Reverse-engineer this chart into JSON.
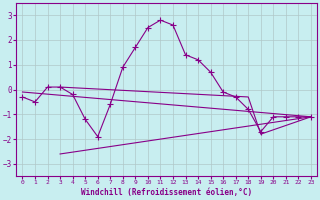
{
  "xlabel": "Windchill (Refroidissement éolien,°C)",
  "background_color": "#c8eef0",
  "grid_color": "#b0c8c8",
  "line_color": "#880088",
  "xlim": [
    -0.5,
    23.5
  ],
  "ylim": [
    -3.5,
    3.5
  ],
  "xticks": [
    0,
    1,
    2,
    3,
    4,
    5,
    6,
    7,
    8,
    9,
    10,
    11,
    12,
    13,
    14,
    15,
    16,
    17,
    18,
    19,
    20,
    21,
    22,
    23
  ],
  "yticks": [
    -3,
    -2,
    -1,
    0,
    1,
    2,
    3
  ],
  "line1_x": [
    0,
    1,
    2,
    3,
    4,
    5,
    6,
    7,
    8,
    9,
    10,
    11,
    12,
    13,
    14,
    15,
    16,
    17,
    18,
    19,
    20,
    21,
    22,
    23
  ],
  "line1_y": [
    -0.3,
    -0.5,
    0.1,
    0.1,
    -0.2,
    -1.2,
    -1.9,
    -0.6,
    0.9,
    1.7,
    2.5,
    2.8,
    2.6,
    1.4,
    1.2,
    0.7,
    -0.1,
    -0.3,
    -0.8,
    -1.7,
    -1.1,
    -1.1,
    -1.1,
    -1.1
  ],
  "line2_x": [
    0,
    23
  ],
  "line2_y": [
    -0.1,
    -1.1
  ],
  "line3_x": [
    3,
    23
  ],
  "line3_y": [
    -2.6,
    -1.1
  ],
  "line4_x": [
    3,
    18,
    19,
    23
  ],
  "line4_y": [
    0.1,
    -0.3,
    -1.8,
    -1.1
  ]
}
